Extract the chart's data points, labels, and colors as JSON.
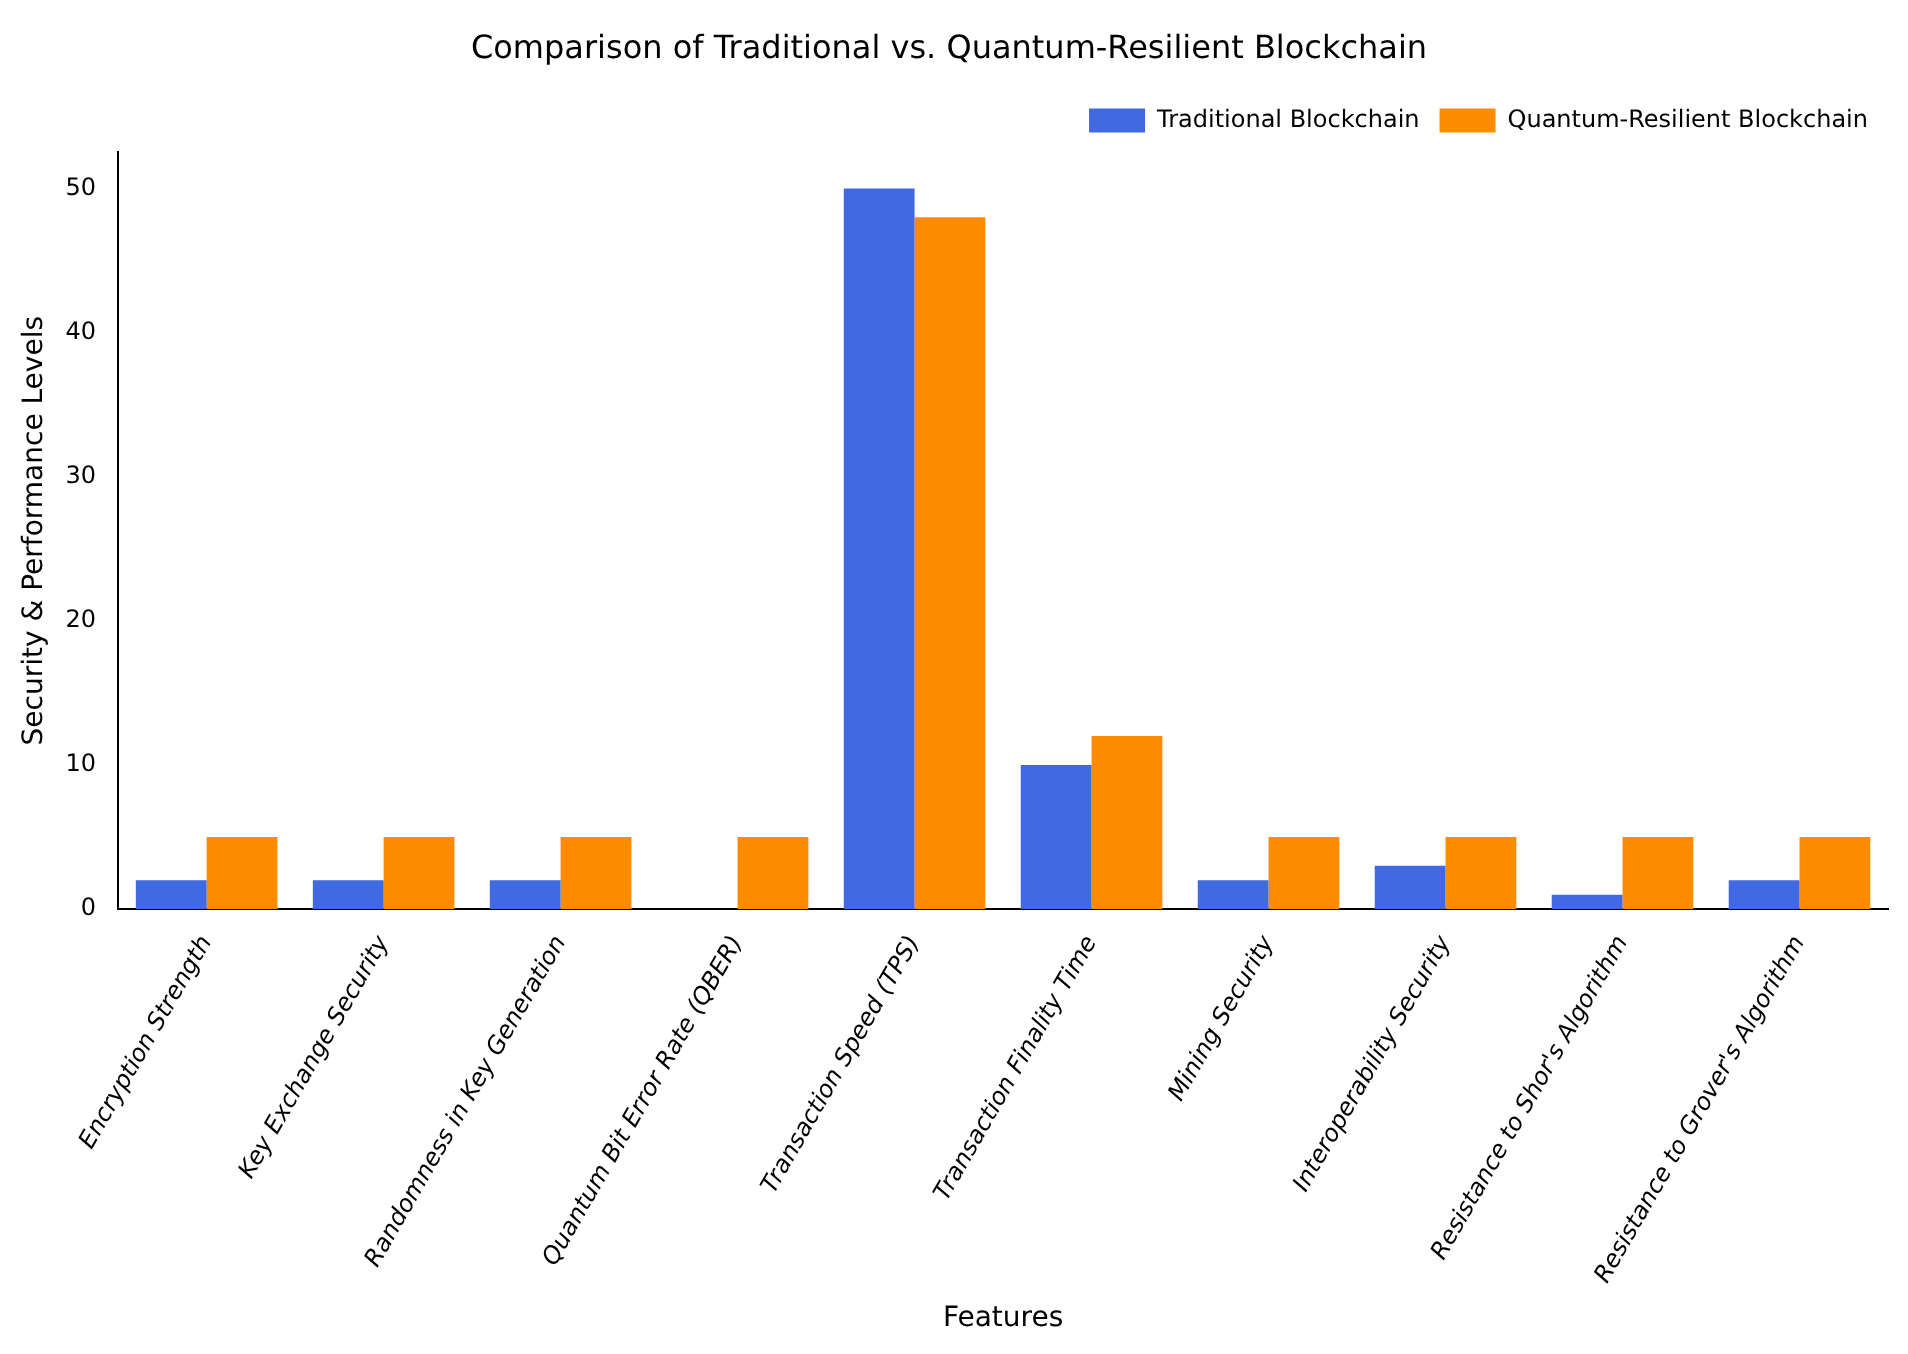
{
  "chart_data": {
    "type": "bar",
    "title": "Comparison of Traditional vs. Quantum-Resilient Blockchain",
    "xlabel": "Features",
    "ylabel": "Security & Performance Levels",
    "categories": [
      "Encryption Strength",
      "Key Exchange Security",
      "Randomness in Key Generation",
      "Quantum Bit Error Rate (QBER)",
      "Transaction Speed (TPS)",
      "Transaction Finality Time",
      "Mining Security",
      "Interoperability Security",
      "Resistance to Shor's Algorithm",
      "Resistance to Grover's Algorithm"
    ],
    "series": [
      {
        "name": "Traditional Blockchain",
        "color": "#4169e1",
        "values": [
          2,
          2,
          2,
          0,
          50,
          10,
          2,
          3,
          1,
          2
        ]
      },
      {
        "name": "Quantum-Resilient Blockchain",
        "color": "#ff8c00",
        "values": [
          5,
          5,
          5,
          5,
          48,
          12,
          5,
          5,
          5,
          5
        ]
      }
    ],
    "ylim": [
      0,
      52.5
    ],
    "yticks": [
      0,
      10,
      20,
      30,
      40,
      50
    ],
    "grid": false,
    "legend": "top right"
  }
}
